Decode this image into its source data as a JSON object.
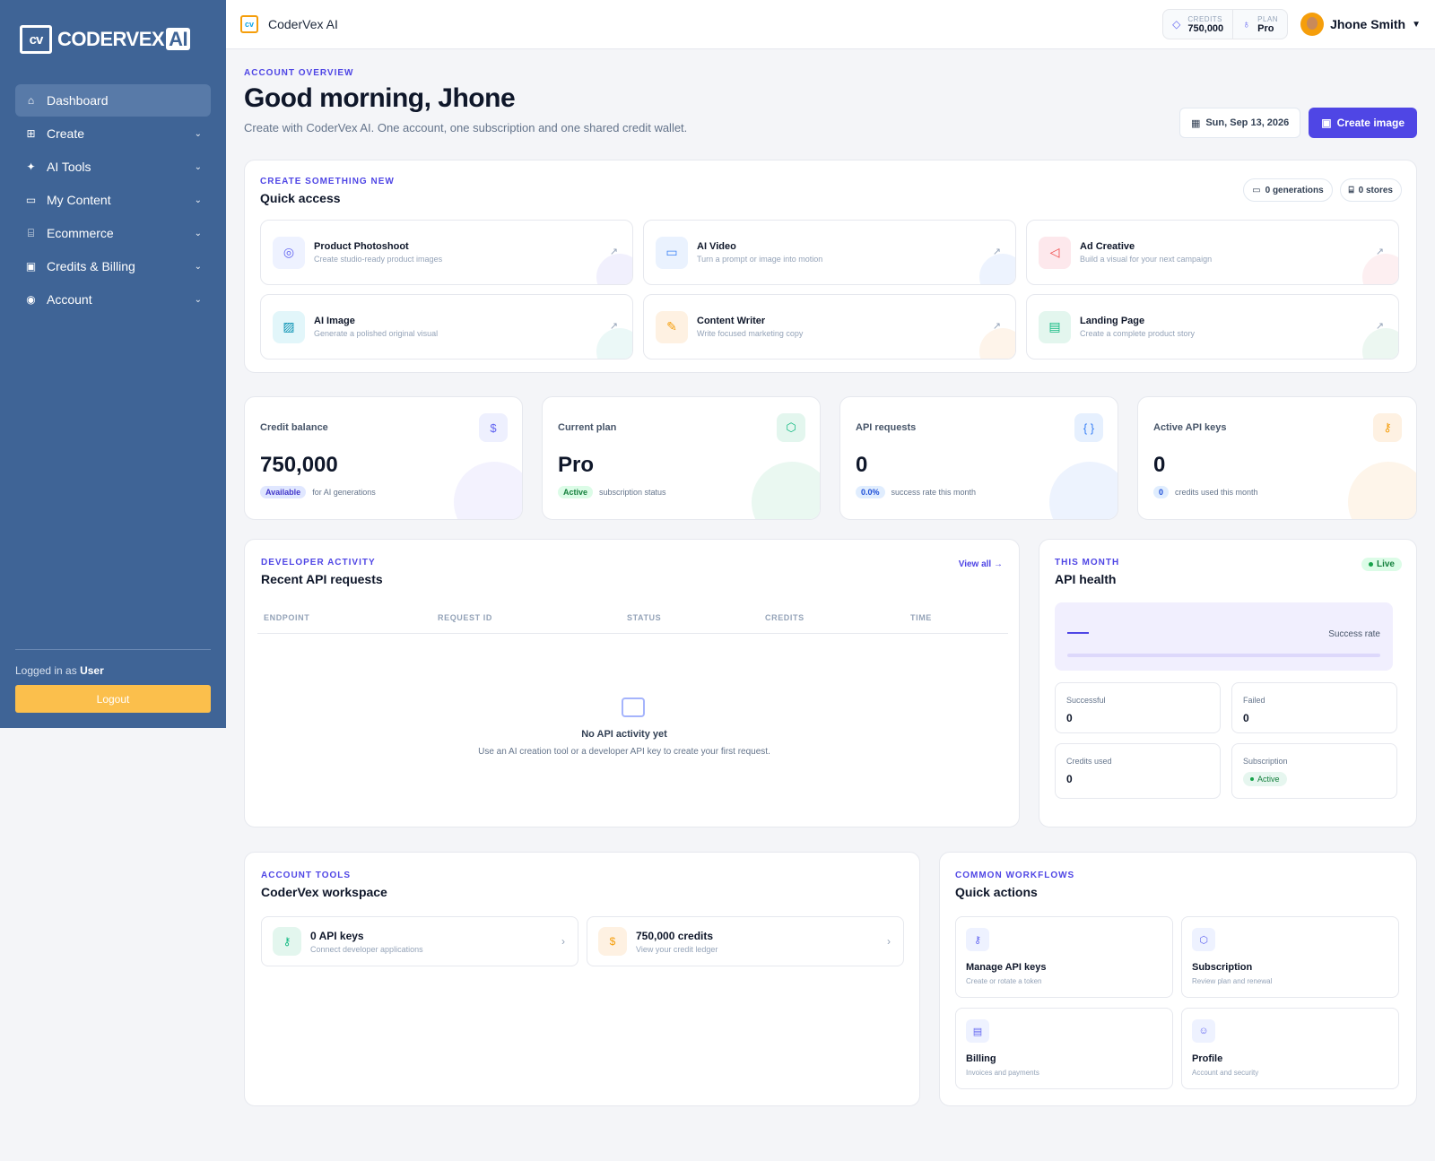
{
  "brand": {
    "logo_mark": "cv",
    "logo_text": "CODERVEX",
    "logo_suffix": "AI",
    "app_title": "CoderVex AI"
  },
  "sidebar": {
    "items": [
      {
        "label": "Dashboard",
        "icon": "home-icon"
      },
      {
        "label": "Create",
        "icon": "plus-square-icon"
      },
      {
        "label": "AI Tools",
        "icon": "sparkle-icon"
      },
      {
        "label": "My Content",
        "icon": "folder-icon"
      },
      {
        "label": "Ecommerce",
        "icon": "store-icon"
      },
      {
        "label": "Credits & Billing",
        "icon": "wallet-icon"
      },
      {
        "label": "Account",
        "icon": "user-circle-icon"
      }
    ],
    "logged_prefix": "Logged in as",
    "logged_user": "User",
    "logout_label": "Logout"
  },
  "topbar": {
    "credits_label": "CREDITS",
    "credits_value": "750,000",
    "plan_label": "PLAN",
    "plan_value": "Pro",
    "user_name": "Jhone Smith"
  },
  "header": {
    "eyebrow": "ACCOUNT OVERVIEW",
    "greeting": "Good morning, Jhone",
    "subtitle": "Create with CoderVex AI. One account, one subscription and one shared credit wallet.",
    "date": "Sun, Sep 13, 2026",
    "create_button": "Create image"
  },
  "quick_access": {
    "eyebrow": "CREATE SOMETHING NEW",
    "title": "Quick access",
    "chip_generations": "0 generations",
    "chip_stores": "0 stores",
    "items": [
      {
        "title": "Product Photoshoot",
        "desc": "Create studio-ready product images",
        "icon": "camera-icon",
        "color": "#6366f1"
      },
      {
        "title": "AI Video",
        "desc": "Turn a prompt or image into motion",
        "icon": "video-icon",
        "color": "#3b82f6"
      },
      {
        "title": "Ad Creative",
        "desc": "Build a visual for your next campaign",
        "icon": "megaphone-icon",
        "color": "#ef4444"
      },
      {
        "title": "AI Image",
        "desc": "Generate a polished original visual",
        "icon": "image-icon",
        "color": "#06b6d4"
      },
      {
        "title": "Content Writer",
        "desc": "Write focused marketing copy",
        "icon": "pencil-icon",
        "color": "#f59e0b"
      },
      {
        "title": "Landing Page",
        "desc": "Create a complete product story",
        "icon": "browser-icon",
        "color": "#10b981"
      }
    ]
  },
  "kpis": [
    {
      "label": "Credit balance",
      "value": "750,000",
      "badge": "Available",
      "note": "for AI generations",
      "icon": "dollar-icon",
      "color": "#6366f1"
    },
    {
      "label": "Current plan",
      "value": "Pro",
      "badge": "Active",
      "note": "subscription status",
      "icon": "box-icon",
      "color": "#10b981"
    },
    {
      "label": "API requests",
      "value": "0",
      "badge": "0.0%",
      "note": "success rate this month",
      "icon": "braces-icon",
      "color": "#3b82f6"
    },
    {
      "label": "Active API keys",
      "value": "0",
      "badge": "0",
      "note": "credits used this month",
      "icon": "key-icon",
      "color": "#f59e0b"
    }
  ],
  "activity": {
    "eyebrow": "DEVELOPER ACTIVITY",
    "title": "Recent API requests",
    "view_all": "View all →",
    "columns": [
      "ENDPOINT",
      "REQUEST ID",
      "STATUS",
      "CREDITS",
      "TIME"
    ],
    "empty_title": "No API activity yet",
    "empty_desc": "Use an AI creation tool or a developer API key to create your first request."
  },
  "health": {
    "eyebrow": "THIS MONTH",
    "title": "API health",
    "live": "Live",
    "success_label": "Success rate",
    "successful_label": "Successful",
    "successful_value": "0",
    "failed_label": "Failed",
    "failed_value": "0",
    "credits_used_label": "Credits used",
    "credits_used_value": "0",
    "subscription_label": "Subscription",
    "subscription_value": "Active"
  },
  "tools": {
    "eyebrow": "ACCOUNT TOOLS",
    "title": "CoderVex workspace",
    "items": [
      {
        "title": "0 API keys",
        "desc": "Connect developer applications",
        "icon": "key-icon"
      },
      {
        "title": "750,000 credits",
        "desc": "View your credit ledger",
        "icon": "dollar-icon"
      }
    ]
  },
  "workflows": {
    "eyebrow": "COMMON WORKFLOWS",
    "title": "Quick actions",
    "items": [
      {
        "title": "Manage API keys",
        "desc": "Create or rotate a token",
        "icon": "key-icon"
      },
      {
        "title": "Subscription",
        "desc": "Review plan and renewal",
        "icon": "box-icon"
      },
      {
        "title": "Billing",
        "desc": "Invoices and payments",
        "icon": "receipt-icon"
      },
      {
        "title": "Profile",
        "desc": "Account and security",
        "icon": "user-icon"
      }
    ]
  }
}
